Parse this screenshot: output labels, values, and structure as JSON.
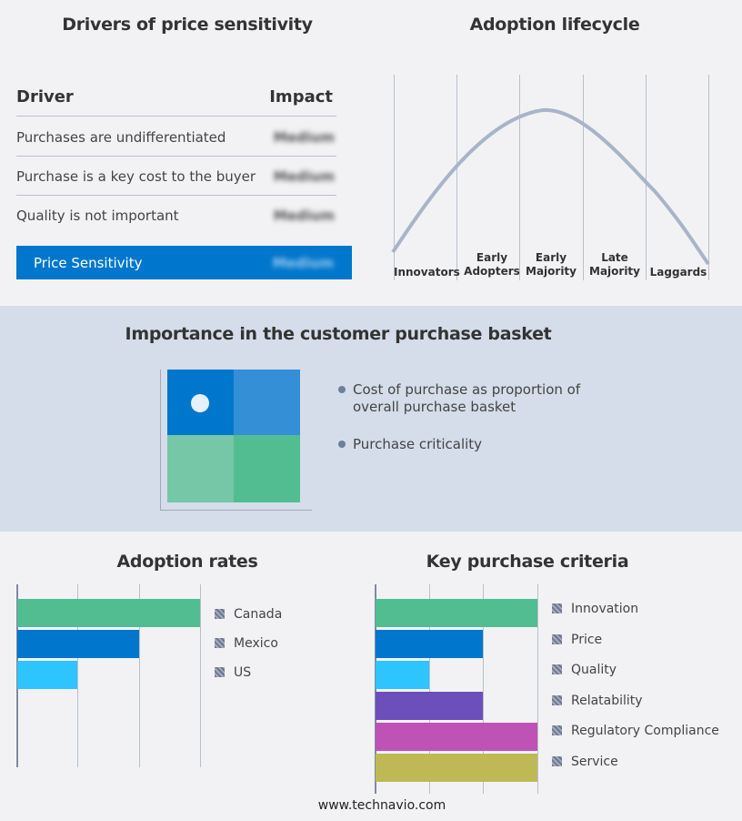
{
  "drivers": {
    "title": "Drivers of price sensitivity",
    "col_driver": "Driver",
    "col_impact": "Impact",
    "rows": [
      {
        "driver": "Purchases are undifferentiated",
        "impact": "Medium"
      },
      {
        "driver": "Purchase is a key cost to the buyer",
        "impact": "Medium"
      },
      {
        "driver": "Quality is not important",
        "impact": "Medium"
      }
    ],
    "summary": {
      "label": "Price Sensitivity",
      "impact": "Medium"
    },
    "accent": "#0077cc"
  },
  "lifecycle": {
    "title": "Adoption lifecycle",
    "stages": [
      "Innovators",
      "Early Adopters",
      "Early Majority",
      "Late Majority",
      "Laggards"
    ]
  },
  "basket": {
    "title": "Importance in the customer purchase basket",
    "legend": [
      "Cost of purchase as proportion of overall purchase basket",
      "Purchase criticality"
    ],
    "quadrant_colors": [
      "#0077cc",
      "#358fd6",
      "#76c6a8",
      "#52bd91"
    ]
  },
  "footer": "www.technavio.com",
  "chart_data": [
    {
      "type": "bar",
      "orientation": "horizontal",
      "title": "Adoption rates",
      "categories": [
        "Canada",
        "Mexico",
        "US"
      ],
      "values": [
        3,
        2,
        1
      ],
      "xlim": [
        0,
        3
      ],
      "grid": true,
      "legend": "right",
      "colors": [
        "#52bd91",
        "#0077cc",
        "#2ec4ff"
      ]
    },
    {
      "type": "bar",
      "orientation": "horizontal",
      "title": "Key purchase criteria",
      "categories": [
        "Innovation",
        "Price",
        "Quality",
        "Relatability",
        "Regulatory Compliance",
        "Service"
      ],
      "values": [
        3,
        2,
        1,
        2,
        3,
        3
      ],
      "xlim": [
        0,
        3
      ],
      "grid": true,
      "legend": "right",
      "colors": [
        "#52bd91",
        "#0077cc",
        "#2ec4ff",
        "#6c4fbb",
        "#bf52b5",
        "#bfb955"
      ]
    }
  ]
}
